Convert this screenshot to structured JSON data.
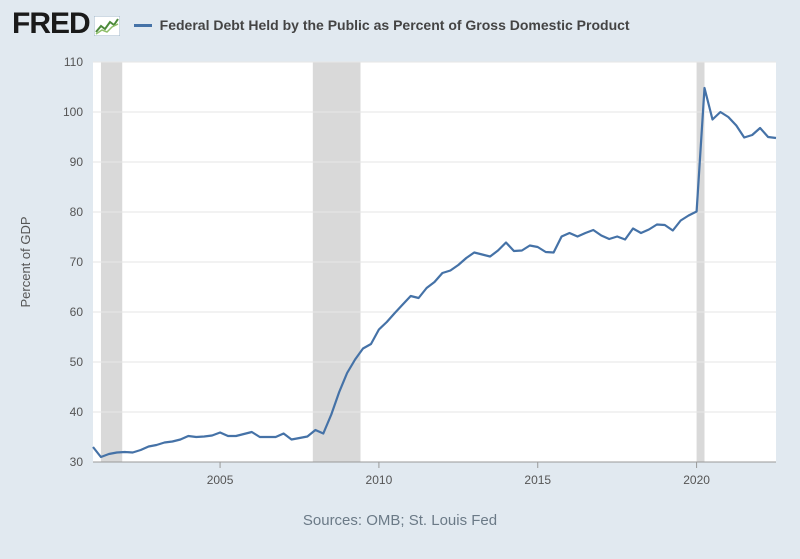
{
  "header": {
    "logo": "FRED",
    "legend_label": "Federal Debt Held by the Public as Percent of Gross Domestic Product"
  },
  "footer": {
    "source": "Sources: OMB; St. Louis Fed"
  },
  "colors": {
    "line": "#4572a7",
    "recession": "#d9d9d9",
    "background": "#e1e9f0",
    "plot_bg": "#ffffff"
  },
  "chart_data": {
    "type": "line",
    "title": "",
    "xlabel": "",
    "ylabel": "Percent of GDP",
    "xlim": [
      2001.0,
      2022.5
    ],
    "ylim": [
      30,
      110
    ],
    "yticks": [
      30,
      40,
      50,
      60,
      70,
      80,
      90,
      100,
      110
    ],
    "xticks": [
      2005,
      2010,
      2015,
      2020
    ],
    "grid": true,
    "recessions": [
      [
        2001.25,
        2001.92
      ],
      [
        2007.92,
        2009.42
      ],
      [
        2020.0,
        2020.25
      ]
    ],
    "series": [
      {
        "name": "Federal Debt Held by the Public as Percent of Gross Domestic Product",
        "x": [
          2001.0,
          2001.25,
          2001.5,
          2001.75,
          2002.0,
          2002.25,
          2002.5,
          2002.75,
          2003.0,
          2003.25,
          2003.5,
          2003.75,
          2004.0,
          2004.25,
          2004.5,
          2004.75,
          2005.0,
          2005.25,
          2005.5,
          2005.75,
          2006.0,
          2006.25,
          2006.5,
          2006.75,
          2007.0,
          2007.25,
          2007.5,
          2007.75,
          2008.0,
          2008.25,
          2008.5,
          2008.75,
          2009.0,
          2009.25,
          2009.5,
          2009.75,
          2010.0,
          2010.25,
          2010.5,
          2010.75,
          2011.0,
          2011.25,
          2011.5,
          2011.75,
          2012.0,
          2012.25,
          2012.5,
          2012.75,
          2013.0,
          2013.25,
          2013.5,
          2013.75,
          2014.0,
          2014.25,
          2014.5,
          2014.75,
          2015.0,
          2015.25,
          2015.5,
          2015.75,
          2016.0,
          2016.25,
          2016.5,
          2016.75,
          2017.0,
          2017.25,
          2017.5,
          2017.75,
          2018.0,
          2018.25,
          2018.5,
          2018.75,
          2019.0,
          2019.25,
          2019.5,
          2019.75,
          2020.0,
          2020.25,
          2020.5,
          2020.75,
          2021.0,
          2021.25,
          2021.5,
          2021.75,
          2022.0,
          2022.25,
          2022.5
        ],
        "y": [
          33.0,
          31.0,
          31.6,
          31.9,
          32.0,
          31.9,
          32.4,
          33.1,
          33.4,
          33.9,
          34.1,
          34.5,
          35.2,
          35.0,
          35.1,
          35.3,
          35.9,
          35.2,
          35.2,
          35.6,
          36.0,
          35.0,
          35.0,
          35.0,
          35.7,
          34.5,
          34.8,
          35.1,
          36.4,
          35.7,
          39.5,
          44.0,
          47.8,
          50.5,
          52.7,
          53.6,
          56.5,
          58.0,
          59.8,
          61.5,
          63.2,
          62.8,
          64.8,
          66.0,
          67.8,
          68.3,
          69.4,
          70.8,
          71.9,
          71.5,
          71.1,
          72.3,
          73.9,
          72.2,
          72.3,
          73.3,
          73.0,
          72.0,
          71.9,
          75.1,
          75.8,
          75.1,
          75.8,
          76.4,
          75.3,
          74.6,
          75.1,
          74.5,
          76.7,
          75.8,
          76.5,
          77.5,
          77.4,
          76.3,
          78.3,
          79.3,
          80.1,
          104.8,
          98.5,
          100.0,
          99.0,
          97.3,
          94.9,
          95.4,
          96.8,
          95.0,
          94.8
        ]
      }
    ]
  }
}
